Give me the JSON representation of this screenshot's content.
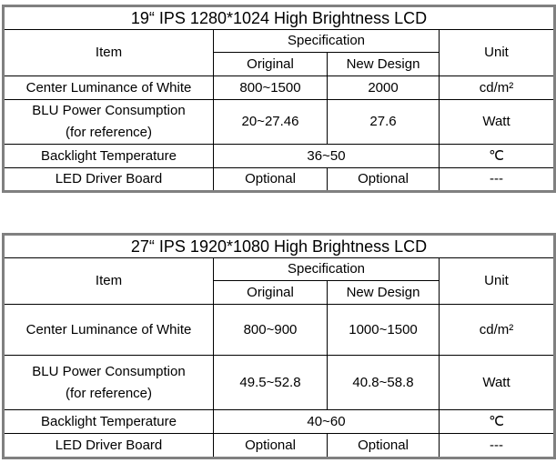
{
  "tables": [
    {
      "title": "19“ IPS 1280*1024 High Brightness LCD",
      "header": {
        "item": "Item",
        "specification": "Specification",
        "original": "Original",
        "new_design": "New Design",
        "unit": "Unit"
      },
      "rows": [
        {
          "item": [
            "Center Luminance of White"
          ],
          "original": "800~1500",
          "new_design": "2000",
          "unit": "cd/m²"
        },
        {
          "item": [
            "BLU Power Consumption",
            "(for reference)"
          ],
          "original": "20~27.46",
          "new_design": "27.6",
          "unit": "Watt"
        },
        {
          "item": [
            "Backlight Temperature"
          ],
          "specification": "36~50",
          "unit": "℃"
        },
        {
          "item": [
            "LED Driver Board"
          ],
          "original": "Optional",
          "new_design": "Optional",
          "unit": "---"
        }
      ]
    },
    {
      "title": "27“ IPS 1920*1080 High Brightness LCD",
      "header": {
        "item": "Item",
        "specification": "Specification",
        "original": "Original",
        "new_design": "New Design",
        "unit": "Unit"
      },
      "rows": [
        {
          "item": [
            "Center Luminance of White"
          ],
          "original": "800~900",
          "new_design": "1000~1500",
          "unit": "cd/m²"
        },
        {
          "item": [
            "BLU Power Consumption",
            "(for reference)"
          ],
          "original": "49.5~52.8",
          "new_design": "40.8~58.8",
          "unit": "Watt"
        },
        {
          "item": [
            "Backlight Temperature"
          ],
          "specification": "40~60",
          "unit": "℃"
        },
        {
          "item": [
            "LED Driver Board"
          ],
          "original": "Optional",
          "new_design": "Optional",
          "unit": "---"
        }
      ]
    }
  ]
}
